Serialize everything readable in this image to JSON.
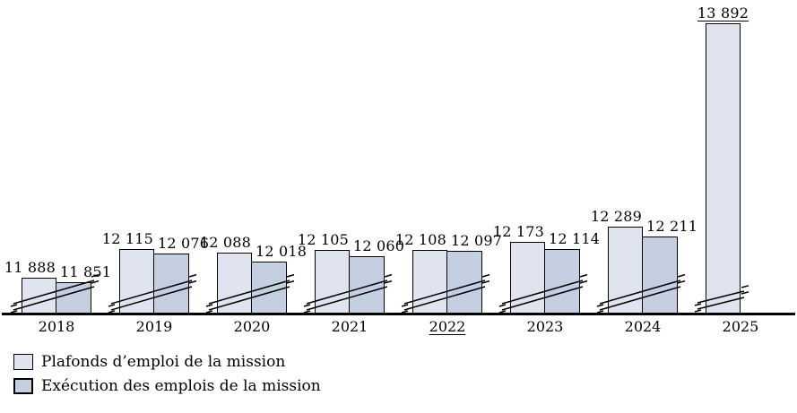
{
  "chart_data": {
    "type": "bar",
    "title": "",
    "categories": [
      "2018",
      "2019",
      "2020",
      "2021",
      "2022",
      "2023",
      "2024",
      "2025"
    ],
    "series": [
      {
        "name": "Plafonds d’emploi de la mission",
        "color": "#dfe4ef",
        "values": [
          11888,
          12115,
          12088,
          12105,
          12108,
          12173,
          12289,
          13892
        ],
        "labels": [
          "11 888",
          "12 115",
          "12 088",
          "12 105",
          "12 108",
          "12 173",
          "12 289",
          "13 892"
        ]
      },
      {
        "name": "Exécution des emplois de la mission",
        "color": "#c5cfe2",
        "values": [
          11851,
          12076,
          12018,
          12060,
          12097,
          12114,
          12211,
          null
        ],
        "labels": [
          "11 851",
          "12 076",
          "12 018",
          "12 060",
          "12 097",
          "12 114",
          "12 211",
          ""
        ]
      }
    ],
    "value_label_underlined": [
      "13 892"
    ],
    "category_label_underlined": [
      "2022"
    ],
    "axis_break": true,
    "grid": false,
    "xlabel": "",
    "ylabel": "",
    "ylim_effective": [
      11605,
      13950
    ],
    "legend_position": "bottom-left"
  },
  "legend": {
    "items": [
      {
        "label": "Plafonds d’emploi de la mission",
        "color": "#dfe4ef"
      },
      {
        "label": "Exécution des emplois de la mission",
        "color": "#c5cfe2"
      }
    ]
  },
  "colors": {
    "background": "#ffffff",
    "bar_light": "#dfe4ef",
    "bar_dark": "#c5cfe2",
    "bar_border": "#000000",
    "axis_line": "#000000",
    "text": "#000000"
  }
}
